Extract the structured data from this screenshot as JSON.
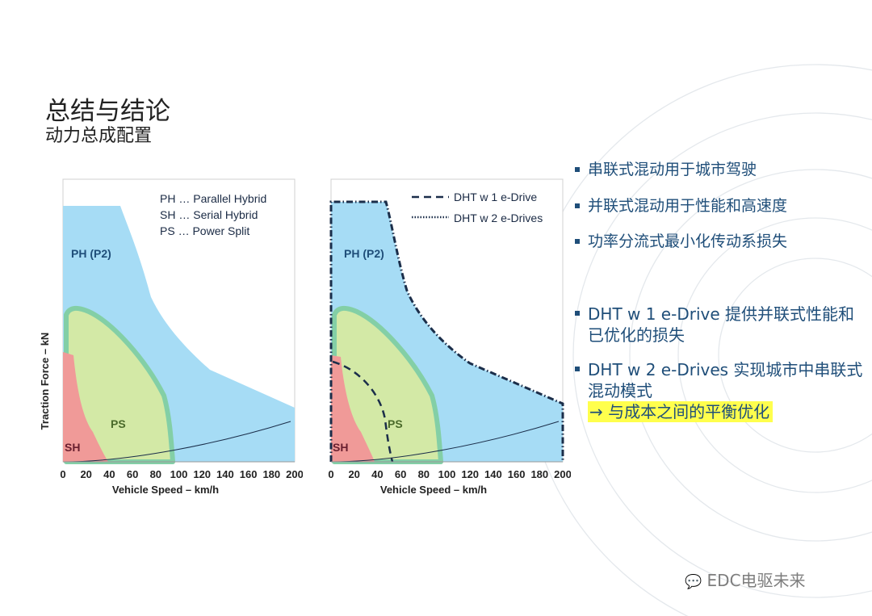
{
  "title": "总结与结论",
  "subtitle": "动力总成配置",
  "bullets": [
    {
      "text": "串联式混动用于城市驾驶"
    },
    {
      "text": "并联式混动用于性能和高速度"
    },
    {
      "text": "功率分流式最小化传动系损失"
    },
    {
      "text": "DHT w 1 e-Drive 提供并联式性能和已优化的损失"
    },
    {
      "text": "DHT w 2 e-Drives 实现城市中串联式混动模式",
      "highlight": "→ 与成本之间的平衡优化"
    }
  ],
  "watermark": "EDC电驱未来",
  "colors": {
    "ph": "#a6dcf5",
    "ps": "#d3e9a6",
    "ps_border": "#83cfa6",
    "sh": "#f09a98",
    "dht_line": "#1b2e4a",
    "text_blue": "#1f4e79",
    "highlight": "#ffff4d"
  },
  "chart_data": [
    {
      "type": "area",
      "xlabel": "Vehicle Speed – km/h",
      "ylabel": "Traction Force – kN",
      "x_ticks": [
        0,
        20,
        40,
        60,
        80,
        100,
        120,
        140,
        160,
        180,
        200
      ],
      "xlim": [
        0,
        200
      ],
      "legend": [
        "PH … Parallel Hybrid",
        "SH … Serial Hybrid",
        "PS … Power Split"
      ],
      "region_labels": {
        "ph": "PH (P2)",
        "ps": "PS",
        "sh": "SH"
      }
    },
    {
      "type": "area",
      "xlabel": "Vehicle Speed – km/h",
      "ylabel": "",
      "x_ticks": [
        0,
        20,
        40,
        60,
        80,
        100,
        120,
        140,
        160,
        180,
        200
      ],
      "xlim": [
        0,
        200
      ],
      "legend": [
        "DHT w 1 e-Drive",
        "DHT w 2 e-Drives"
      ],
      "region_labels": {
        "ph": "PH (P2)",
        "ps": "PS",
        "sh": "SH"
      }
    }
  ]
}
